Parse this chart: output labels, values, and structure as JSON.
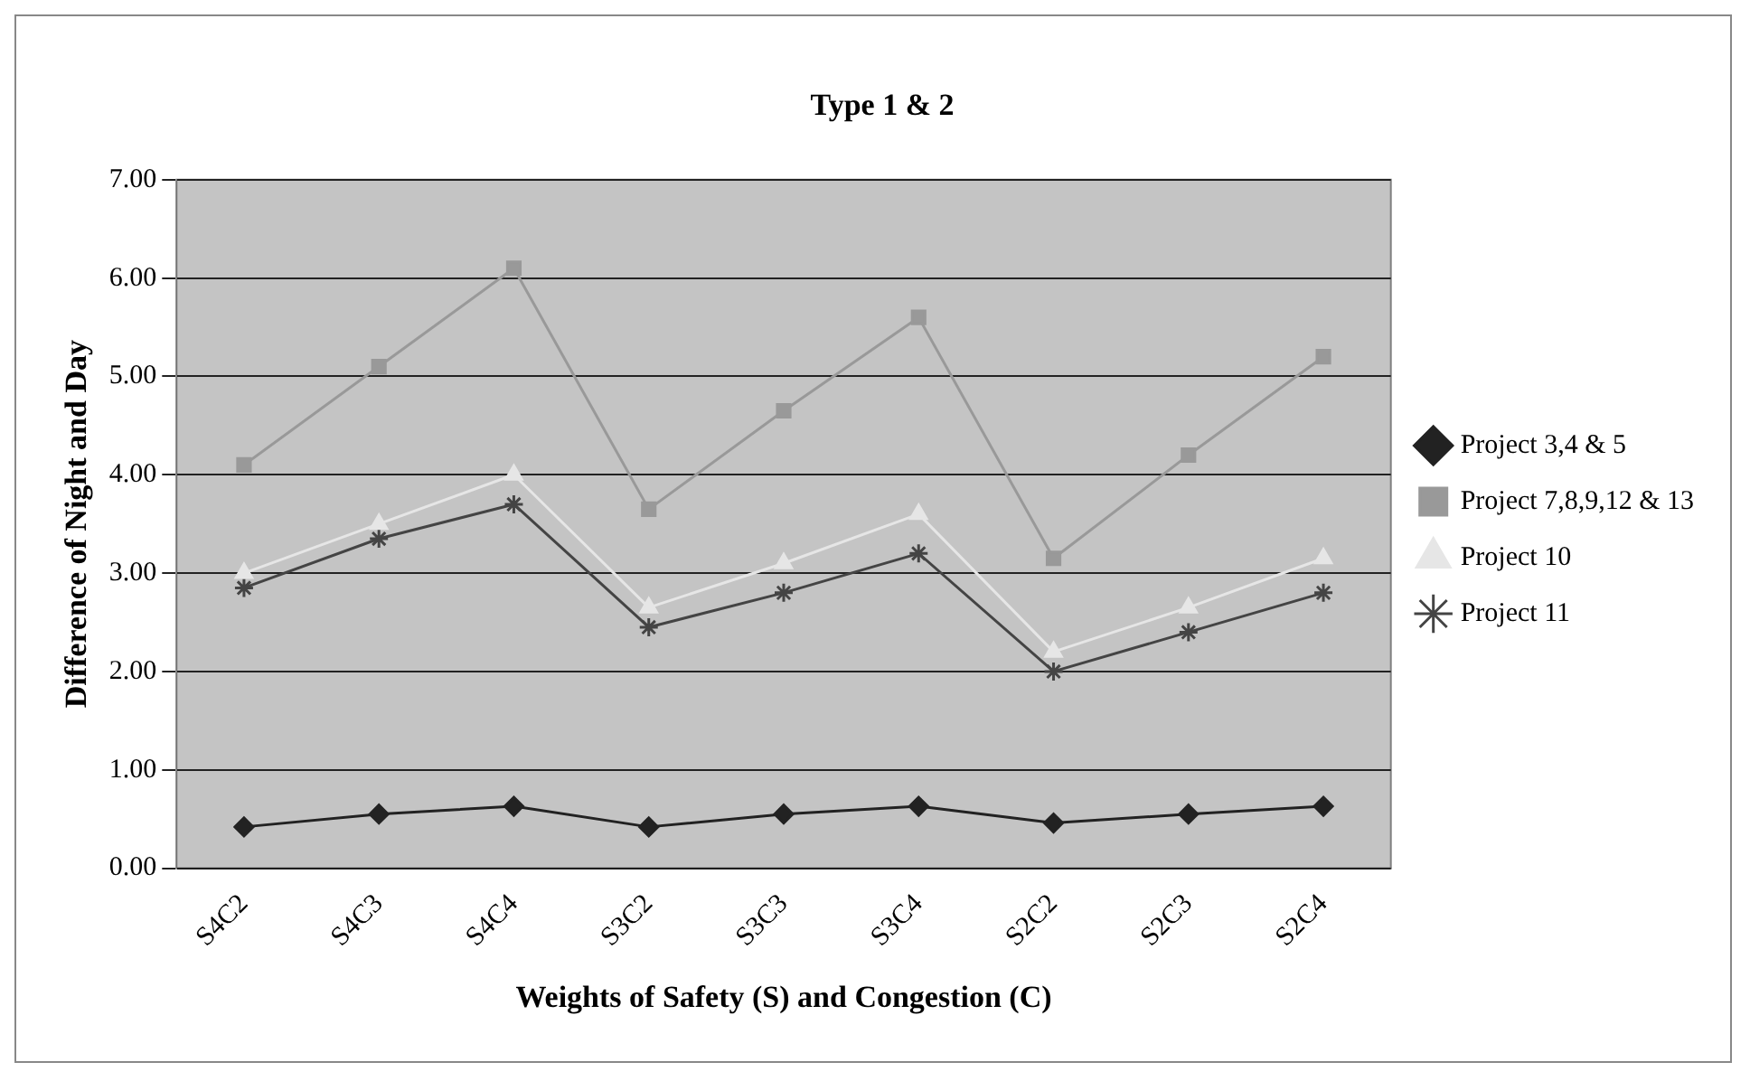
{
  "chart_data": {
    "type": "line",
    "title": "Type 1 & 2",
    "xlabel": "Weights of Safety (S) and Congestion (C)",
    "ylabel": "Difference of Night and Day",
    "categories": [
      "S4C2",
      "S4C3",
      "S4C4",
      "S3C2",
      "S3C3",
      "S3C4",
      "S2C2",
      "S2C3",
      "S2C4"
    ],
    "series": [
      {
        "name": "Project 3,4 & 5",
        "color": "#222222",
        "marker": "diamond",
        "values": [
          0.42,
          0.55,
          0.63,
          0.42,
          0.55,
          0.63,
          0.46,
          0.55,
          0.63
        ]
      },
      {
        "name": "Project 7,8,9,12 & 13",
        "color": "#999999",
        "marker": "square",
        "values": [
          4.1,
          5.1,
          6.1,
          3.65,
          4.65,
          5.6,
          3.15,
          4.2,
          5.2
        ]
      },
      {
        "name": "Project 10",
        "color": "#e6e6e6",
        "marker": "triangle",
        "values": [
          3.0,
          3.5,
          4.0,
          2.65,
          3.1,
          3.6,
          2.2,
          2.65,
          3.15
        ]
      },
      {
        "name": "Project 11",
        "color": "#444444",
        "marker": "cross",
        "values": [
          2.85,
          3.35,
          3.7,
          2.45,
          2.8,
          3.2,
          2.0,
          2.4,
          2.8
        ]
      }
    ],
    "ylim": [
      0,
      7
    ],
    "yticks": [
      {
        "value": 0,
        "label": "0.00"
      },
      {
        "value": 1,
        "label": "1.00"
      },
      {
        "value": 2,
        "label": "2.00"
      },
      {
        "value": 3,
        "label": "3.00"
      },
      {
        "value": 4,
        "label": "4.00"
      },
      {
        "value": 5,
        "label": "5.00"
      },
      {
        "value": 6,
        "label": "6.00"
      },
      {
        "value": 7,
        "label": "7.00"
      }
    ],
    "grid": "y",
    "legend": "right"
  }
}
